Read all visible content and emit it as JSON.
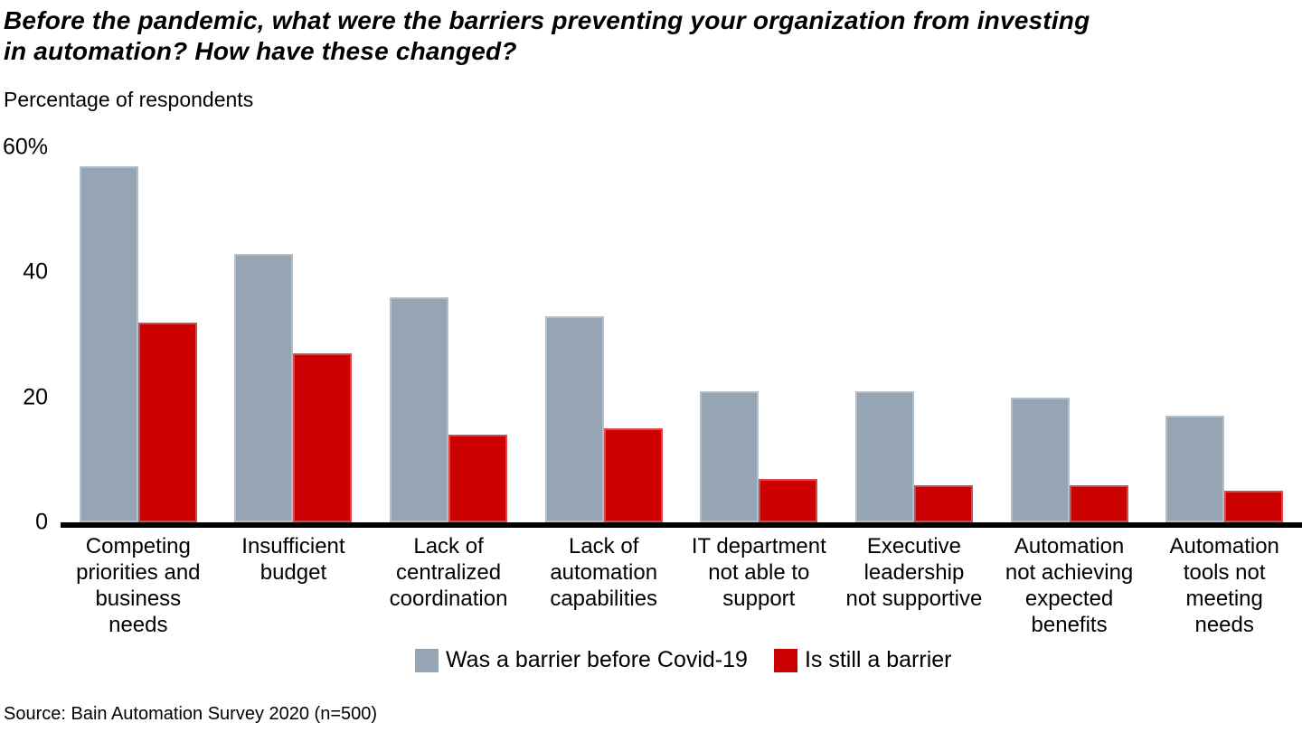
{
  "title": "Before the pandemic, what were the barriers preventing your organization from investing\nin automation? How have these changed?",
  "subtitle": "Percentage of respondents",
  "source": "Source: Bain Automation Survey 2020 (n=500)",
  "colors": {
    "before_barrier": "#96A5B3",
    "still_barrier": "#CC0000",
    "axis": "#000000"
  },
  "chart_data": {
    "type": "bar",
    "title": "Before the pandemic, what were the barriers preventing your organization from investing in automation? How have these changed?",
    "ylabel": "Percentage of respondents",
    "categories": [
      "Competing priorities and business needs",
      "Insufficient budget",
      "Lack of centralized coordination",
      "Lack of automation capabilities",
      "IT department not able to support",
      "Executive leadership not supportive",
      "Automation not achieving expected benefits",
      "Automation tools not meeting needs"
    ],
    "categories_wrapped": [
      "Competing\npriorities and\nbusiness\nneeds",
      "Insufficient\nbudget",
      "Lack of\ncentralized\ncoordination",
      "Lack of\nautomation\ncapabilities",
      "IT department\nnot able to\nsupport",
      "Executive\nleadership\nnot supportive",
      "Automation\nnot achieving\nexpected\nbenefits",
      "Automation\ntools not\nmeeting\nneeds"
    ],
    "series": [
      {
        "name": "Was a barrier before Covid-19",
        "color": "#96A5B3",
        "values": [
          57,
          43,
          36,
          33,
          21,
          21,
          20,
          17
        ]
      },
      {
        "name": "Is still a barrier",
        "color": "#CC0000",
        "values": [
          32,
          27,
          14,
          15,
          7,
          6,
          6,
          5
        ]
      }
    ],
    "ylim": [
      0,
      60
    ],
    "yticks": [
      0,
      20,
      40,
      60
    ],
    "ytick_labels": [
      "0",
      "20",
      "40",
      "60%"
    ],
    "grid": false,
    "legend_position": "bottom"
  }
}
